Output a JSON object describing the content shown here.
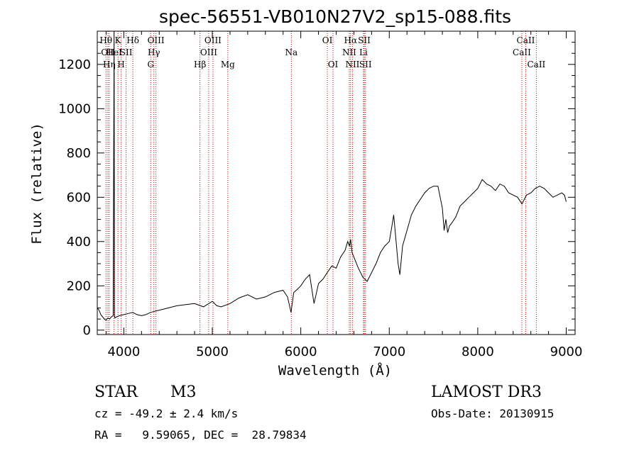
{
  "chart_data": {
    "type": "line",
    "title": "spec-56551-VB010N27V2_sp15-088.fits",
    "xlabel": "Wavelength (Å)",
    "ylabel": "Flux (relative)",
    "xlim": [
      3700,
      9100
    ],
    "ylim": [
      -20,
      1350
    ],
    "xticks": [
      4000,
      5000,
      6000,
      7000,
      8000,
      9000
    ],
    "yticks": [
      0,
      200,
      400,
      600,
      800,
      1000,
      1200
    ],
    "grid": false,
    "spectrum": {
      "x": [
        3700,
        3720,
        3740,
        3760,
        3780,
        3800,
        3820,
        3840,
        3860,
        3880,
        3890,
        3895,
        3900,
        3920,
        3950,
        4000,
        4050,
        4100,
        4150,
        4200,
        4250,
        4300,
        4350,
        4400,
        4450,
        4500,
        4600,
        4700,
        4800,
        4900,
        5000,
        5050,
        5100,
        5200,
        5300,
        5400,
        5450,
        5500,
        5600,
        5700,
        5800,
        5850,
        5890,
        5920,
        5950,
        6000,
        6050,
        6100,
        6150,
        6200,
        6250,
        6300,
        6350,
        6400,
        6450,
        6500,
        6530,
        6550,
        6563,
        6580,
        6600,
        6650,
        6700,
        6750,
        6800,
        6850,
        6900,
        6950,
        7000,
        7030,
        7050,
        7100,
        7120,
        7150,
        7200,
        7250,
        7300,
        7350,
        7400,
        7450,
        7500,
        7550,
        7600,
        7620,
        7640,
        7660,
        7680,
        7700,
        7750,
        7800,
        7850,
        7900,
        7950,
        8000,
        8050,
        8100,
        8150,
        8200,
        8250,
        8300,
        8350,
        8400,
        8450,
        8500,
        8550,
        8600,
        8650,
        8700,
        8750,
        8800,
        8850,
        8900,
        8950,
        8980,
        9000
      ],
      "y": [
        100,
        90,
        70,
        60,
        50,
        45,
        55,
        50,
        60,
        65,
        1350,
        60,
        55,
        60,
        65,
        70,
        75,
        80,
        70,
        65,
        70,
        80,
        85,
        90,
        95,
        100,
        110,
        115,
        120,
        105,
        130,
        110,
        105,
        120,
        145,
        160,
        150,
        140,
        150,
        170,
        180,
        150,
        80,
        170,
        180,
        200,
        230,
        250,
        120,
        210,
        230,
        260,
        290,
        280,
        330,
        360,
        400,
        380,
        410,
        350,
        330,
        280,
        240,
        220,
        260,
        300,
        350,
        380,
        400,
        470,
        520,
        300,
        250,
        380,
        450,
        520,
        560,
        590,
        620,
        640,
        650,
        650,
        550,
        450,
        500,
        440,
        470,
        480,
        510,
        560,
        580,
        600,
        620,
        640,
        680,
        660,
        650,
        630,
        660,
        650,
        620,
        610,
        600,
        570,
        610,
        620,
        640,
        650,
        640,
        620,
        600,
        610,
        620,
        610,
        580
      ]
    },
    "lines": [
      {
        "w": 3798,
        "label": "Hθ",
        "row": 0
      },
      {
        "w": 3820,
        "label": "OII",
        "row": 1
      },
      {
        "w": 3835,
        "label": "Hη",
        "row": 2
      },
      {
        "w": 3889,
        "label": "HeI",
        "row": 1
      },
      {
        "w": 3934,
        "label": "K",
        "row": 0
      },
      {
        "w": 3970,
        "label": "H",
        "row": 2
      },
      {
        "w": 4026,
        "label": "SII",
        "row": 1
      },
      {
        "w": 4102,
        "label": "Hδ",
        "row": 0
      },
      {
        "w": 4304,
        "label": "G",
        "row": 2
      },
      {
        "w": 4340,
        "label": "Hγ",
        "row": 1
      },
      {
        "w": 4363,
        "label": "OIII",
        "row": 0
      },
      {
        "w": 4861,
        "label": "Hβ",
        "row": 2
      },
      {
        "w": 4959,
        "label": "OIII",
        "row": 1
      },
      {
        "w": 5007,
        "label": "OIII",
        "row": 0
      },
      {
        "w": 5175,
        "label": "Mg",
        "row": 2
      },
      {
        "w": 5893,
        "label": "Na",
        "row": 1
      },
      {
        "w": 6300,
        "label": "OI",
        "row": 0
      },
      {
        "w": 6364,
        "label": "OI",
        "row": 2
      },
      {
        "w": 6548,
        "label": "NII",
        "row": 1
      },
      {
        "w": 6563,
        "label": "Hα",
        "row": 0
      },
      {
        "w": 6584,
        "label": "NII",
        "row": 2
      },
      {
        "w": 6708,
        "label": "Li",
        "row": 1
      },
      {
        "w": 6717,
        "label": "SII",
        "row": 0
      },
      {
        "w": 6731,
        "label": "SII",
        "row": 2
      },
      {
        "w": 8498,
        "label": "CaII",
        "row": 1
      },
      {
        "w": 8542,
        "label": "CaII",
        "row": 0
      },
      {
        "w": 8662,
        "label": "CaII",
        "row": 2
      }
    ],
    "colors": {
      "spectrum": "#000000",
      "line_markers": "#cc0000"
    }
  },
  "info": {
    "object_class": "STAR",
    "subclass": "M3",
    "survey": "LAMOST DR3",
    "cz": "cz = -49.2 ± 2.4 km/s",
    "obs_date": "Obs-Date: 20130915",
    "coords": "RA =   9.59065, DEC =  28.79834"
  }
}
